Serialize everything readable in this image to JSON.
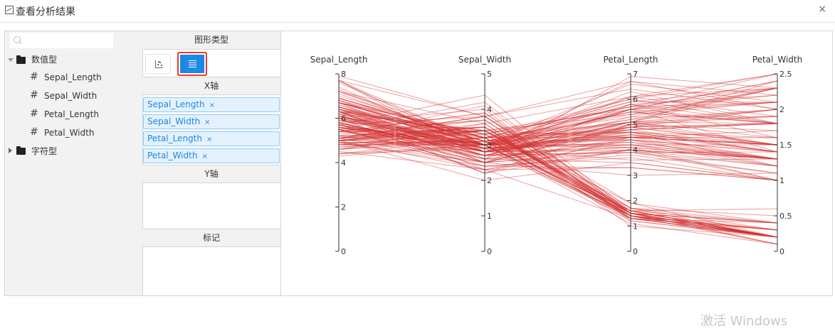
{
  "window": {
    "title": "查看分析结果",
    "close_glyph": "×"
  },
  "left_panel": {
    "search": {
      "placeholder": "",
      "value": ""
    },
    "groups": [
      {
        "label": "数值型",
        "expanded": true,
        "fields": [
          "Sepal_Length",
          "Sepal_Width",
          "Petal_Length",
          "Petal_Width"
        ]
      },
      {
        "label": "字符型",
        "expanded": false,
        "fields": []
      }
    ]
  },
  "config_panel": {
    "chart_type_header": "图形类型",
    "chart_types": [
      {
        "name": "scatter-icon",
        "selected": false
      },
      {
        "name": "parallel-coordinates-icon",
        "selected": true
      }
    ],
    "x_axis_header": "X轴",
    "x_axis_fields": [
      "Sepal_Length",
      "Sepal_Width",
      "Petal_Length",
      "Petal_Width"
    ],
    "remove_glyph": "×",
    "y_axis_header": "Y轴",
    "marker_header": "标记"
  },
  "colors": {
    "accent": "#1e88e5",
    "line": "#d32f2f",
    "highlight": "#e53935"
  },
  "chart_data": {
    "type": "parallel",
    "axes": [
      {
        "name": "Sepal_Length",
        "range": [
          0,
          8
        ],
        "ticks": [
          0,
          2,
          4,
          6,
          8
        ]
      },
      {
        "name": "Sepal_Width",
        "range": [
          0,
          5
        ],
        "ticks": [
          0,
          1,
          2,
          3,
          4,
          5
        ]
      },
      {
        "name": "Petal_Length",
        "range": [
          0,
          7
        ],
        "ticks": [
          0,
          1,
          2,
          3,
          4,
          5,
          6,
          7
        ]
      },
      {
        "name": "Petal_Width",
        "range": [
          0,
          2.5
        ],
        "ticks": [
          0,
          0.5,
          1,
          1.5,
          2,
          2.5
        ]
      }
    ],
    "rows": [
      [
        5.1,
        3.5,
        1.4,
        0.2
      ],
      [
        4.9,
        3.0,
        1.4,
        0.2
      ],
      [
        4.7,
        3.2,
        1.3,
        0.2
      ],
      [
        4.6,
        3.1,
        1.5,
        0.2
      ],
      [
        5.0,
        3.6,
        1.4,
        0.2
      ],
      [
        5.4,
        3.9,
        1.7,
        0.4
      ],
      [
        4.6,
        3.4,
        1.4,
        0.3
      ],
      [
        5.0,
        3.4,
        1.5,
        0.2
      ],
      [
        4.4,
        2.9,
        1.4,
        0.2
      ],
      [
        4.9,
        3.1,
        1.5,
        0.1
      ],
      [
        5.4,
        3.7,
        1.5,
        0.2
      ],
      [
        4.8,
        3.4,
        1.6,
        0.2
      ],
      [
        4.8,
        3.0,
        1.4,
        0.1
      ],
      [
        4.3,
        3.0,
        1.1,
        0.1
      ],
      [
        5.8,
        4.0,
        1.2,
        0.2
      ],
      [
        5.7,
        4.4,
        1.5,
        0.4
      ],
      [
        5.4,
        3.9,
        1.3,
        0.4
      ],
      [
        5.1,
        3.5,
        1.4,
        0.3
      ],
      [
        5.7,
        3.8,
        1.7,
        0.3
      ],
      [
        5.1,
        3.8,
        1.5,
        0.3
      ],
      [
        5.4,
        3.4,
        1.7,
        0.2
      ],
      [
        5.1,
        3.7,
        1.5,
        0.4
      ],
      [
        4.6,
        3.6,
        1.0,
        0.2
      ],
      [
        5.1,
        3.3,
        1.7,
        0.5
      ],
      [
        4.8,
        3.4,
        1.9,
        0.2
      ],
      [
        5.0,
        3.0,
        1.6,
        0.2
      ],
      [
        5.0,
        3.4,
        1.6,
        0.4
      ],
      [
        5.2,
        3.5,
        1.5,
        0.2
      ],
      [
        5.2,
        3.4,
        1.4,
        0.2
      ],
      [
        4.7,
        3.2,
        1.6,
        0.2
      ],
      [
        4.8,
        3.1,
        1.6,
        0.2
      ],
      [
        5.4,
        3.4,
        1.5,
        0.4
      ],
      [
        5.2,
        4.1,
        1.5,
        0.1
      ],
      [
        5.5,
        4.2,
        1.4,
        0.2
      ],
      [
        4.9,
        3.1,
        1.5,
        0.2
      ],
      [
        5.0,
        3.2,
        1.2,
        0.2
      ],
      [
        5.5,
        3.5,
        1.3,
        0.2
      ],
      [
        4.4,
        3.0,
        1.3,
        0.2
      ],
      [
        5.1,
        3.4,
        1.5,
        0.2
      ],
      [
        5.0,
        3.5,
        1.3,
        0.3
      ],
      [
        4.5,
        2.3,
        1.3,
        0.3
      ],
      [
        4.4,
        3.2,
        1.3,
        0.2
      ],
      [
        5.0,
        3.5,
        1.6,
        0.6
      ],
      [
        5.1,
        3.8,
        1.9,
        0.4
      ],
      [
        4.8,
        3.0,
        1.4,
        0.3
      ],
      [
        5.1,
        3.8,
        1.6,
        0.2
      ],
      [
        4.6,
        3.2,
        1.4,
        0.2
      ],
      [
        5.3,
        3.7,
        1.5,
        0.2
      ],
      [
        5.0,
        3.3,
        1.4,
        0.2
      ],
      [
        7.0,
        3.2,
        4.7,
        1.4
      ],
      [
        6.4,
        3.2,
        4.5,
        1.5
      ],
      [
        6.9,
        3.1,
        4.9,
        1.5
      ],
      [
        5.5,
        2.3,
        4.0,
        1.3
      ],
      [
        6.5,
        2.8,
        4.6,
        1.5
      ],
      [
        5.7,
        2.8,
        4.5,
        1.3
      ],
      [
        6.3,
        3.3,
        4.7,
        1.6
      ],
      [
        4.9,
        2.4,
        3.3,
        1.0
      ],
      [
        6.6,
        2.9,
        4.6,
        1.3
      ],
      [
        5.2,
        2.7,
        3.9,
        1.4
      ],
      [
        5.0,
        2.0,
        3.5,
        1.0
      ],
      [
        5.9,
        3.0,
        4.2,
        1.5
      ],
      [
        6.0,
        2.2,
        4.0,
        1.0
      ],
      [
        6.1,
        2.9,
        4.7,
        1.4
      ],
      [
        5.6,
        2.9,
        3.6,
        1.3
      ],
      [
        6.7,
        3.1,
        4.4,
        1.4
      ],
      [
        5.6,
        3.0,
        4.5,
        1.5
      ],
      [
        5.8,
        2.7,
        4.1,
        1.0
      ],
      [
        6.2,
        2.2,
        4.5,
        1.5
      ],
      [
        5.6,
        2.5,
        3.9,
        1.1
      ],
      [
        5.9,
        3.2,
        4.8,
        1.8
      ],
      [
        6.1,
        2.8,
        4.0,
        1.3
      ],
      [
        6.3,
        2.5,
        4.9,
        1.5
      ],
      [
        6.1,
        2.8,
        4.7,
        1.2
      ],
      [
        6.4,
        2.9,
        4.3,
        1.3
      ],
      [
        6.6,
        3.0,
        4.4,
        1.4
      ],
      [
        6.8,
        2.8,
        4.8,
        1.4
      ],
      [
        6.7,
        3.0,
        5.0,
        1.7
      ],
      [
        6.0,
        2.9,
        4.5,
        1.5
      ],
      [
        5.7,
        2.6,
        3.5,
        1.0
      ],
      [
        5.5,
        2.4,
        3.8,
        1.1
      ],
      [
        5.5,
        2.4,
        3.7,
        1.0
      ],
      [
        5.8,
        2.7,
        3.9,
        1.2
      ],
      [
        6.0,
        2.7,
        5.1,
        1.6
      ],
      [
        5.4,
        3.0,
        4.5,
        1.5
      ],
      [
        6.0,
        3.4,
        4.5,
        1.6
      ],
      [
        6.7,
        3.1,
        4.7,
        1.5
      ],
      [
        6.3,
        2.3,
        4.4,
        1.3
      ],
      [
        5.6,
        3.0,
        4.1,
        1.3
      ],
      [
        5.5,
        2.5,
        4.0,
        1.3
      ],
      [
        5.5,
        2.6,
        4.4,
        1.2
      ],
      [
        6.1,
        3.0,
        4.6,
        1.4
      ],
      [
        5.8,
        2.6,
        4.0,
        1.2
      ],
      [
        5.0,
        2.3,
        3.3,
        1.0
      ],
      [
        5.6,
        2.7,
        4.2,
        1.3
      ],
      [
        5.7,
        3.0,
        4.2,
        1.2
      ],
      [
        5.7,
        2.9,
        4.2,
        1.3
      ],
      [
        6.2,
        2.9,
        4.3,
        1.3
      ],
      [
        5.1,
        2.5,
        3.0,
        1.1
      ],
      [
        5.7,
        2.8,
        4.1,
        1.3
      ],
      [
        6.3,
        3.3,
        6.0,
        2.5
      ],
      [
        5.8,
        2.7,
        5.1,
        1.9
      ],
      [
        7.1,
        3.0,
        5.9,
        2.1
      ],
      [
        6.3,
        2.9,
        5.6,
        1.8
      ],
      [
        6.5,
        3.0,
        5.8,
        2.2
      ],
      [
        7.6,
        3.0,
        6.6,
        2.1
      ],
      [
        4.9,
        2.5,
        4.5,
        1.7
      ],
      [
        7.3,
        2.9,
        6.3,
        1.8
      ],
      [
        6.7,
        2.5,
        5.8,
        1.8
      ],
      [
        7.2,
        3.6,
        6.1,
        2.5
      ],
      [
        6.5,
        3.2,
        5.1,
        2.0
      ],
      [
        6.4,
        2.7,
        5.3,
        1.9
      ],
      [
        6.8,
        3.0,
        5.5,
        2.1
      ],
      [
        5.7,
        2.5,
        5.0,
        2.0
      ],
      [
        5.8,
        2.8,
        5.1,
        2.4
      ],
      [
        6.4,
        3.2,
        5.3,
        2.3
      ],
      [
        6.5,
        3.0,
        5.5,
        1.8
      ],
      [
        7.7,
        3.8,
        6.7,
        2.2
      ],
      [
        7.7,
        2.6,
        6.9,
        2.3
      ],
      [
        6.0,
        2.2,
        5.0,
        1.5
      ],
      [
        6.9,
        3.2,
        5.7,
        2.3
      ],
      [
        5.6,
        2.8,
        4.9,
        2.0
      ],
      [
        7.7,
        2.8,
        6.7,
        2.0
      ],
      [
        6.3,
        2.7,
        4.9,
        1.8
      ],
      [
        6.7,
        3.3,
        5.7,
        2.1
      ],
      [
        7.2,
        3.2,
        6.0,
        1.8
      ],
      [
        6.2,
        2.8,
        4.8,
        1.8
      ],
      [
        6.1,
        3.0,
        4.9,
        1.8
      ],
      [
        6.4,
        2.8,
        5.6,
        2.1
      ],
      [
        7.2,
        3.0,
        5.8,
        1.6
      ],
      [
        7.4,
        2.8,
        6.1,
        1.9
      ],
      [
        7.9,
        3.8,
        6.4,
        2.0
      ],
      [
        6.4,
        2.8,
        5.6,
        2.2
      ],
      [
        6.3,
        2.8,
        5.1,
        1.5
      ],
      [
        6.1,
        2.6,
        5.6,
        1.4
      ],
      [
        7.7,
        3.0,
        6.1,
        2.3
      ],
      [
        6.3,
        3.4,
        5.6,
        2.4
      ],
      [
        6.4,
        3.1,
        5.5,
        1.8
      ],
      [
        6.0,
        3.0,
        4.8,
        1.8
      ],
      [
        6.9,
        3.1,
        5.4,
        2.1
      ],
      [
        6.7,
        3.1,
        5.6,
        2.4
      ],
      [
        6.9,
        3.1,
        5.1,
        2.3
      ],
      [
        6.8,
        3.2,
        5.9,
        2.3
      ],
      [
        6.7,
        3.3,
        5.7,
        2.5
      ],
      [
        6.7,
        3.0,
        5.2,
        2.3
      ],
      [
        6.3,
        2.5,
        5.0,
        1.9
      ],
      [
        6.5,
        3.0,
        5.2,
        2.0
      ],
      [
        6.2,
        3.4,
        5.4,
        2.3
      ],
      [
        5.9,
        3.0,
        5.1,
        1.8
      ]
    ]
  },
  "watermark": "激活 Windows"
}
